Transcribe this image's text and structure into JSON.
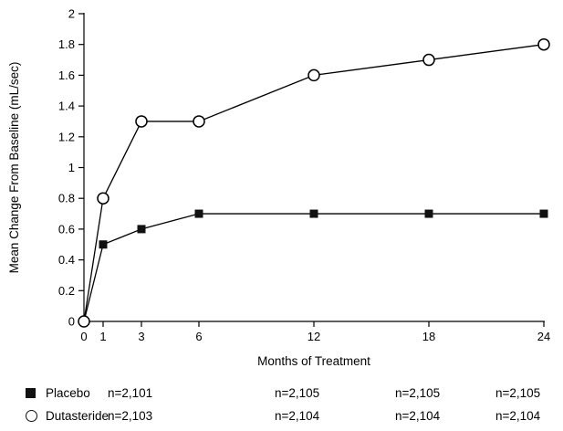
{
  "chart_data": {
    "type": "line",
    "x": [
      0,
      1,
      3,
      6,
      12,
      18,
      24
    ],
    "xticks": [
      0,
      1,
      3,
      6,
      12,
      18,
      24
    ],
    "yticks": [
      0,
      0.2,
      0.4,
      0.6,
      0.8,
      1,
      1.2,
      1.4,
      1.6,
      1.8,
      2
    ],
    "xlim": [
      0,
      24
    ],
    "ylim": [
      0,
      2
    ],
    "xlabel": "Months of Treatment",
    "ylabel": "Mean Change From Baseline (mL/sec)",
    "grid": false,
    "legend_position": "bottom",
    "series": [
      {
        "name": "Placebo",
        "marker": "square-filled",
        "color": "#000000",
        "values": [
          0,
          0.5,
          0.6,
          0.7,
          0.7,
          0.7,
          0.7
        ]
      },
      {
        "name": "Dutasteride",
        "marker": "circle-open",
        "color": "#000000",
        "values": [
          0,
          0.8,
          1.3,
          1.3,
          1.6,
          1.7,
          1.8
        ]
      }
    ]
  },
  "legend": {
    "rows": [
      {
        "label": "Placebo",
        "marker": "square-filled",
        "counts": [
          "n=2,101",
          "n=2,105",
          "n=2,105",
          "n=2,105"
        ]
      },
      {
        "label": "Dutasteride",
        "marker": "circle-open",
        "counts": [
          "n=2,103",
          "n=2,104",
          "n=2,104",
          "n=2,104"
        ]
      }
    ]
  },
  "colors": {
    "foreground": "#000000",
    "background": "#ffffff"
  }
}
